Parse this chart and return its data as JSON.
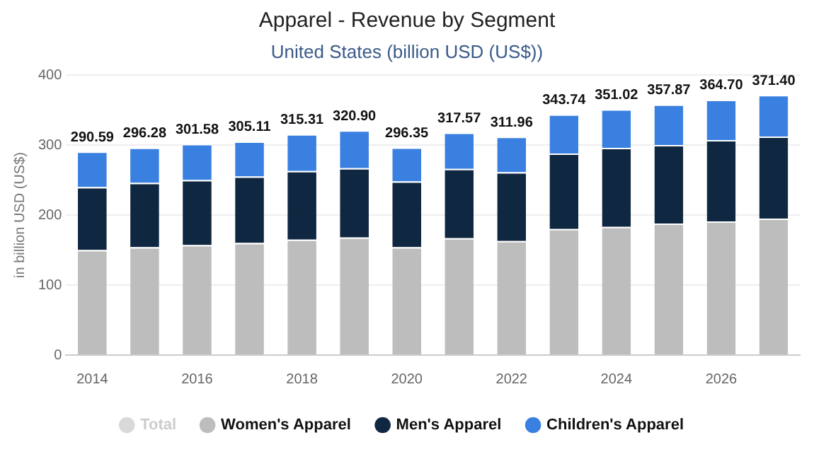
{
  "chart_data": {
    "type": "bar",
    "title": "Apparel - Revenue by Segment",
    "subtitle": "United States (billion USD (US$))",
    "ylabel": "in billion USD (US$)",
    "categories": [
      "2014",
      null,
      "2016",
      null,
      "2018",
      null,
      "2020",
      null,
      "2022",
      null,
      "2024",
      null,
      "2026",
      null
    ],
    "stacked": true,
    "ylim": [
      0,
      400
    ],
    "yticks": [
      0,
      100,
      200,
      300,
      400
    ],
    "grid": "y",
    "legend": "bottom",
    "series": [
      {
        "name": "Total",
        "color": "#d9d9d9",
        "values": [
          null,
          null,
          null,
          null,
          null,
          null,
          null,
          null,
          null,
          null,
          null,
          null,
          null,
          null
        ]
      },
      {
        "name": "Women's Apparel",
        "color": "#bdbdbd",
        "values": [
          150,
          154,
          157,
          160,
          165,
          168,
          154,
          167,
          163,
          180,
          183,
          188,
          191,
          195
        ]
      },
      {
        "name": "Men's Apparel",
        "color": "#0f2740",
        "values": [
          90,
          92,
          93,
          95,
          98,
          99,
          94,
          99,
          98,
          108,
          113,
          112,
          116,
          117
        ]
      },
      {
        "name": "Children's Apparel",
        "color": "#3a80e0",
        "values": [
          50.59,
          50.28,
          51.58,
          50.11,
          52.31,
          53.9,
          48.35,
          51.57,
          50.96,
          55.74,
          55.02,
          57.87,
          57.7,
          59.4
        ]
      }
    ],
    "totals": [
      "290.59",
      "296.28",
      "301.58",
      "305.11",
      "315.31",
      "320.90",
      "296.35",
      "317.57",
      "311.96",
      "343.74",
      "351.02",
      "357.87",
      "364.70",
      "371.40"
    ]
  }
}
